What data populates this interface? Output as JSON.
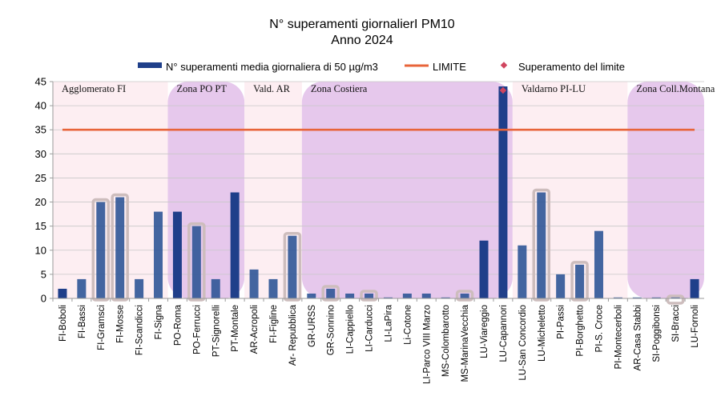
{
  "chart_data": {
    "type": "bar",
    "title": "N° superamenti giornalierI PM10",
    "subtitle": "Anno 2024",
    "ylim": [
      0,
      45
    ],
    "yticks": [
      0,
      5,
      10,
      15,
      20,
      25,
      30,
      35,
      40,
      45
    ],
    "limit_value": 35,
    "legend": {
      "bars": "N° superamenti media giornaliera di 50 µg/m3",
      "limit": "LIMITE",
      "marker": "Superamento del limite"
    },
    "colors": {
      "bar": "#2f5597",
      "bar_dark": "#1f3f8a",
      "limit": "#e8643a",
      "marker": "#d0455f",
      "zone_pink": "#fdeef2",
      "zone_purple": "#e6c8ec",
      "highlight_box": "#cdbdbd"
    },
    "zones": [
      {
        "label": "Agglomerato FI",
        "start": 0,
        "end": 5,
        "tone": "pink"
      },
      {
        "label": "Zona PO PT",
        "start": 6,
        "end": 9,
        "tone": "purple"
      },
      {
        "label": "Vald. AR",
        "start": 10,
        "end": 12,
        "tone": "pink"
      },
      {
        "label": "Zona Costiera",
        "start": 13,
        "end": 23,
        "tone": "purple"
      },
      {
        "label": "Valdarno PI-LU",
        "start": 24,
        "end": 29,
        "tone": "pink"
      },
      {
        "label": "Zona Coll.Montana",
        "start": 30,
        "end": 33,
        "tone": "purple"
      }
    ],
    "categories": [
      "FI-Boboli",
      "FI-Bassi",
      "FI-Gramsci",
      "FI-Mosse",
      "FI-Scandicci",
      "FI-Signa",
      "PO-Roma",
      "PO-Ferrucci",
      "PT-Signorelli",
      "PT-Montale",
      "AR-Acropoli",
      "FI-Figline",
      "Ar- Repubblica",
      "GR-URSS",
      "GR-Sonnino",
      "LI-Cappiello",
      "LI-Carducci",
      "LI-LaPira",
      "Li-Cotone",
      "LI-Parco VIII Marzo",
      "MS-Colombarotto",
      "MS-MarinaVecchia",
      "LU-Viareggio",
      "LU-Capannori",
      "LU-San Concordio",
      "LU-Micheletto",
      "PI-Passi",
      "PI-Borghetto",
      "PI-S. Croce",
      "PI-Montecerboli",
      "AR-Casa Stabbi",
      "SI-Poggibonsi",
      "SI-Bracci",
      "LU-Fornoli"
    ],
    "values": [
      2,
      4,
      20,
      21,
      4,
      18,
      18,
      15,
      4,
      22,
      6,
      4,
      13,
      1,
      2,
      1,
      1,
      0,
      1,
      1,
      0,
      1,
      12,
      44,
      11,
      22,
      5,
      7,
      14,
      0,
      0,
      0,
      0,
      4
    ],
    "highlighted": [
      2,
      3,
      7,
      12,
      14,
      16,
      21,
      25,
      27,
      32
    ],
    "dark_bars": [
      0,
      6,
      9,
      22,
      23,
      33
    ],
    "exceeds_limit": [
      23
    ]
  }
}
